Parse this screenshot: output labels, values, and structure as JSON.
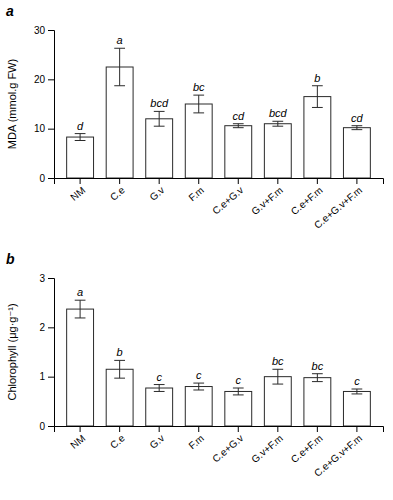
{
  "chart_data": [
    {
      "type": "bar",
      "title": "a",
      "categories": [
        "NM",
        "C.e",
        "G.v",
        "F.m",
        "C.e+G.v",
        "G.v+F.m",
        "C.e+F.m",
        "C.e+G.v+F.m"
      ],
      "values": [
        8.3,
        22.5,
        12.0,
        15.0,
        10.6,
        11.0,
        16.5,
        10.2
      ],
      "errors": [
        0.7,
        3.8,
        1.5,
        1.8,
        0.4,
        0.5,
        2.2,
        0.4
      ],
      "annotations": [
        "d",
        "a",
        "bcd",
        "bc",
        "cd",
        "bcd",
        "b",
        "cd"
      ],
      "ylabel": "MDA (mmol.g FW)",
      "color": "#ffffff",
      "ylim": [
        0,
        30
      ],
      "yticks": [
        0,
        10,
        20,
        30
      ]
    },
    {
      "type": "bar",
      "title": "b",
      "categories": [
        "NM",
        "C.e",
        "G.v",
        "F.m",
        "C.e+G.v",
        "G.v+F.m",
        "C.e+F.m",
        "C.e+G.v+F.m"
      ],
      "values": [
        2.37,
        1.15,
        0.77,
        0.8,
        0.7,
        1.0,
        0.98,
        0.7
      ],
      "errors": [
        0.18,
        0.18,
        0.07,
        0.07,
        0.07,
        0.15,
        0.08,
        0.05
      ],
      "annotations": [
        "a",
        "b",
        "c",
        "c",
        "c",
        "bc",
        "bc",
        "c"
      ],
      "ylabel": "Chlorophyll (μg·g⁻¹)",
      "color": "#ffffff",
      "ylim": [
        0,
        3
      ],
      "yticks": [
        0,
        1,
        2,
        3
      ]
    }
  ]
}
